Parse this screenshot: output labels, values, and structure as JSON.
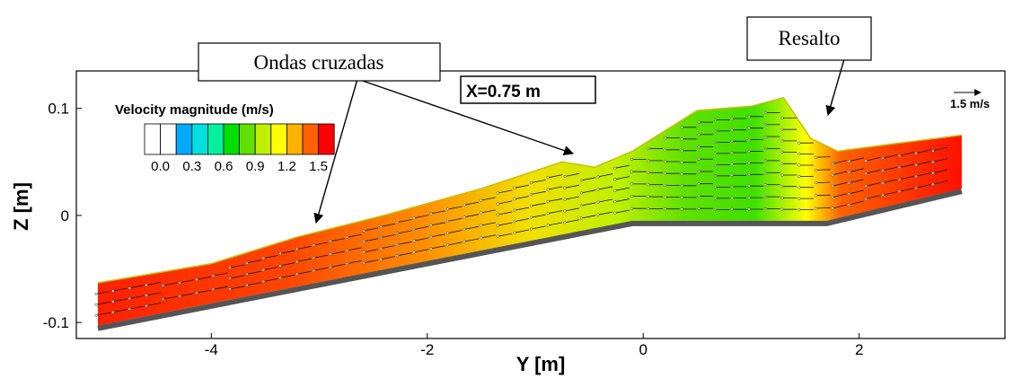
{
  "chart_data": {
    "type": "contour",
    "title": "",
    "xlabel": "Y [m]",
    "ylabel": "Z [m]",
    "xlim": [
      -5.25,
      3.35
    ],
    "ylim": [
      -0.115,
      0.135
    ],
    "x_ticks": [
      {
        "value": -4,
        "label": "-4"
      },
      {
        "value": -2,
        "label": "-2"
      },
      {
        "value": 0,
        "label": "0"
      },
      {
        "value": 2,
        "label": "2"
      }
    ],
    "y_ticks": [
      {
        "value": 0.1,
        "label": "0.1"
      },
      {
        "value": 0,
        "label": "0"
      },
      {
        "value": -0.1,
        "label": "-0.1"
      }
    ],
    "section_label": "X=0.75 m",
    "reference_vector": {
      "label": "1.5 m/s",
      "magnitude": 1.5
    },
    "legend": {
      "title": "Velocity magnitude (m/s)",
      "placement": "top-left",
      "levels": [
        0.0,
        0.15,
        0.3,
        0.45,
        0.6,
        0.75,
        0.9,
        1.05,
        1.2,
        1.35,
        1.5
      ],
      "colors": [
        "#ffffff",
        "#ffffff",
        "#00aaff",
        "#00e0e0",
        "#00f0a0",
        "#00e000",
        "#60e000",
        "#c0f000",
        "#ffff00",
        "#ffb000",
        "#ff6000",
        "#ff0000"
      ],
      "tick_labels": [
        "0.0",
        "0.3",
        "0.6",
        "0.9",
        "1.2",
        "1.5"
      ],
      "tick_values": [
        0.0,
        0.3,
        0.6,
        0.9,
        1.2,
        1.5
      ]
    },
    "channel_bed": [
      {
        "y": -5.05,
        "z": -0.103
      },
      {
        "y": -0.1,
        "z": -0.005
      },
      {
        "y": 1.7,
        "z": -0.005
      },
      {
        "y": 2.95,
        "z": 0.025
      }
    ],
    "free_surface": [
      {
        "y": -5.05,
        "z": -0.063
      },
      {
        "y": -4.0,
        "z": -0.045
      },
      {
        "y": -3.2,
        "z": -0.02
      },
      {
        "y": -2.4,
        "z": 0.0
      },
      {
        "y": -1.5,
        "z": 0.025
      },
      {
        "y": -0.75,
        "z": 0.05
      },
      {
        "y": -0.45,
        "z": 0.045
      },
      {
        "y": -0.1,
        "z": 0.06
      },
      {
        "y": 0.5,
        "z": 0.098
      },
      {
        "y": 1.0,
        "z": 0.102
      },
      {
        "y": 1.3,
        "z": 0.11
      },
      {
        "y": 1.55,
        "z": 0.072
      },
      {
        "y": 1.8,
        "z": 0.06
      },
      {
        "y": 2.4,
        "z": 0.068
      },
      {
        "y": 2.95,
        "z": 0.075
      }
    ],
    "annotations": [
      {
        "label": "Ondas cruzadas",
        "targets": [
          {
            "y": -3.2,
            "z": -0.01
          },
          {
            "y": -0.85,
            "z": 0.053
          }
        ]
      },
      {
        "label": "Resalto",
        "targets": [
          {
            "y": 1.45,
            "z": 0.085
          }
        ]
      }
    ]
  }
}
